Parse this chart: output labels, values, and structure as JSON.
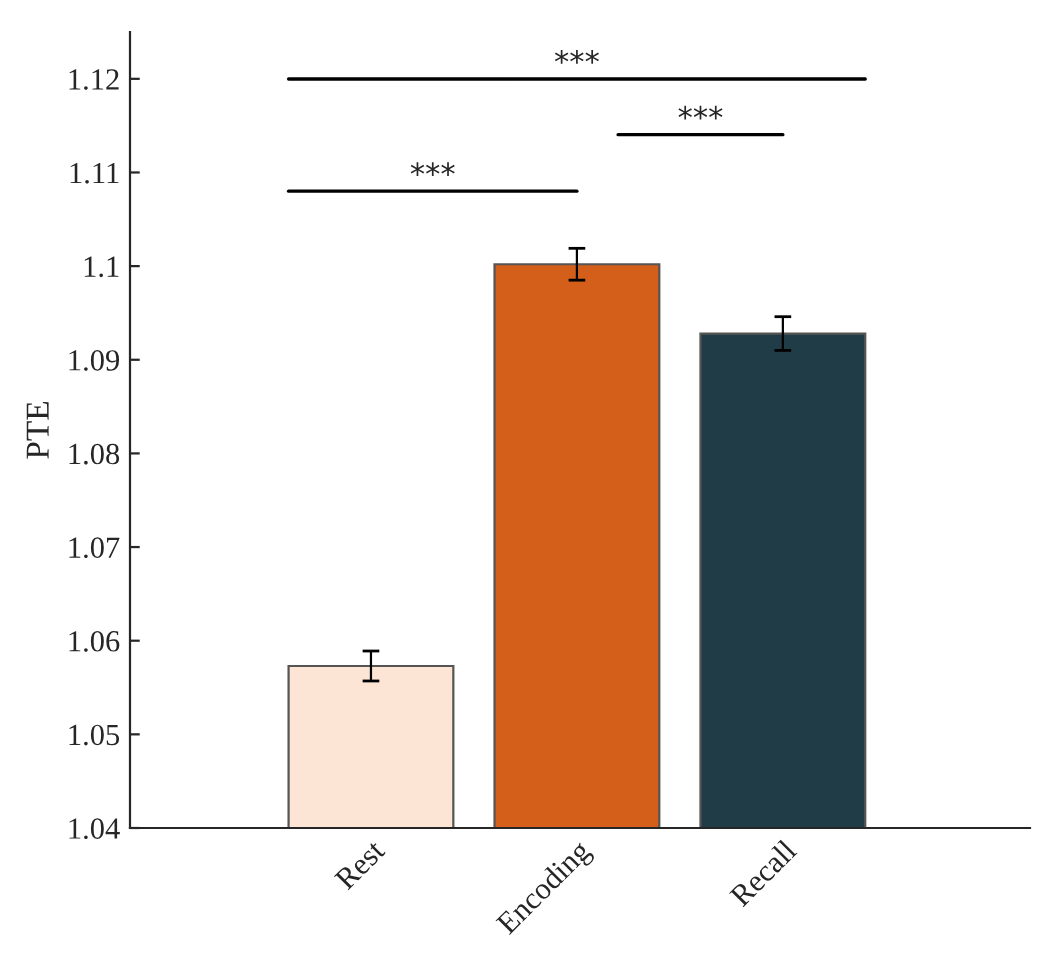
{
  "chart_data": {
    "type": "bar",
    "ylabel": "PTE",
    "categories": [
      "Rest",
      "Encoding",
      "Recall"
    ],
    "values": [
      1.0573,
      1.1002,
      1.0928
    ],
    "errors": [
      0.0016,
      0.0017,
      0.0018
    ],
    "colors": [
      "#fde5d6",
      "#d35f1a",
      "#1f3c47"
    ],
    "ylim": [
      1.04,
      1.125
    ],
    "yticks": [
      1.04,
      1.05,
      1.06,
      1.07,
      1.08,
      1.09,
      1.1,
      1.11,
      1.12
    ],
    "annotations": [
      "***",
      "***",
      "***"
    ]
  }
}
